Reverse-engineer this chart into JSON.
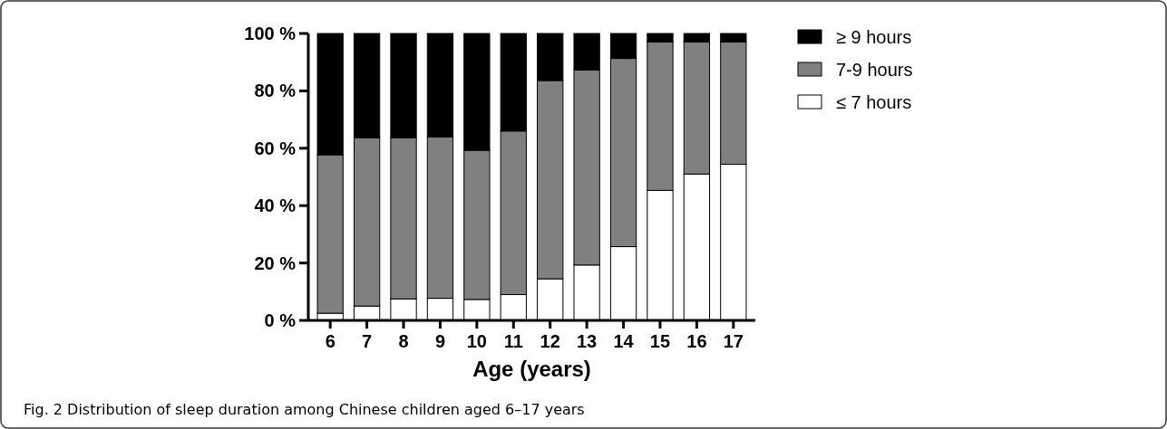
{
  "chart_data": {
    "type": "bar",
    "stacked": true,
    "xlabel": "Age (years)",
    "annotations": [
      "Fig. 2 Distribution of sleep duration among Chinese children aged 6–17 years"
    ],
    "categories": [
      "6",
      "7",
      "8",
      "9",
      "10",
      "11",
      "12",
      "13",
      "14",
      "15",
      "16",
      "17"
    ],
    "series": [
      {
        "name": "≤ 7 hours",
        "color": "#ffffff",
        "values": [
          2.5,
          5,
          7.5,
          7.7,
          7.3,
          9,
          14.5,
          19.3,
          25.7,
          45.3,
          51,
          54.4
        ]
      },
      {
        "name": "7-9 hours",
        "color": "#808080",
        "values": [
          55.2,
          58.7,
          56.2,
          56.3,
          52,
          57,
          69.1,
          68,
          65.6,
          51.7,
          46,
          42.6
        ]
      },
      {
        "name": "≥ 9 hours",
        "color": "#000000",
        "values": [
          42.3,
          36.3,
          36.3,
          36,
          40.7,
          34,
          16.4,
          12.7,
          8.7,
          3,
          3,
          3
        ]
      }
    ],
    "ylim": [
      0,
      100
    ],
    "yticks": [
      {
        "value": 0,
        "label": "0 %"
      },
      {
        "value": 20,
        "label": "20 %"
      },
      {
        "value": 40,
        "label": "40 %"
      },
      {
        "value": 60,
        "label": "60 %"
      },
      {
        "value": 80,
        "label": "80 %"
      },
      {
        "value": 100,
        "label": "100 %"
      }
    ],
    "grid": false,
    "legend": "top right"
  }
}
